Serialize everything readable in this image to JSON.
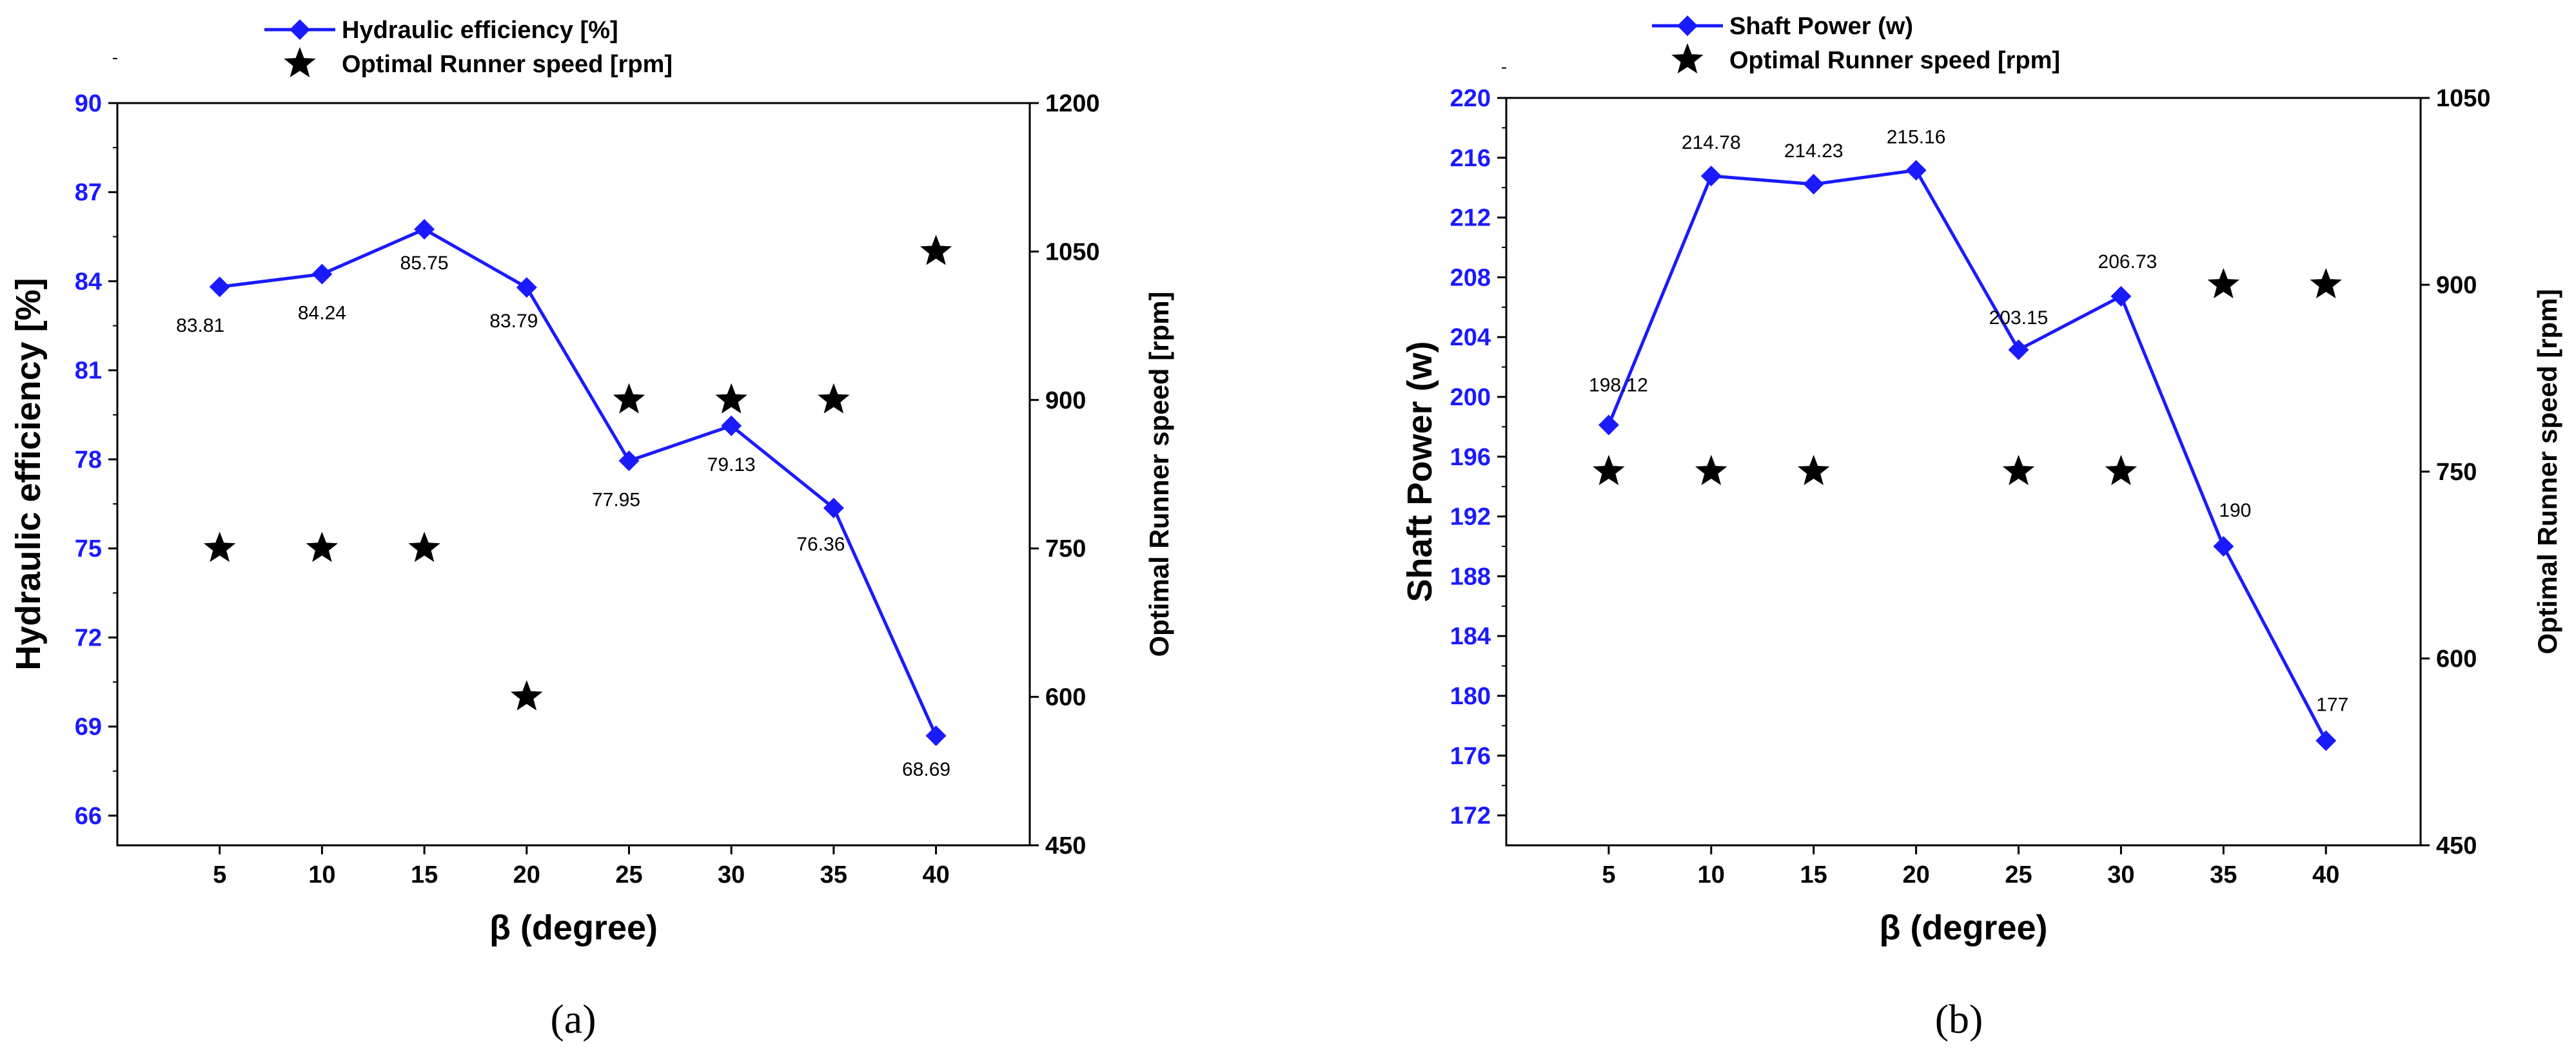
{
  "chart_data": [
    {
      "type": "line",
      "panel_label": "(a)",
      "categories": [
        "5",
        "10",
        "15",
        "20",
        "25",
        "30",
        "35",
        "40"
      ],
      "xlabel": "β (degree)",
      "ylabel": "Hydraulic efficiency  [%]",
      "ylim": [
        65,
        90
      ],
      "yticks": [
        "66",
        "69",
        "72",
        "75",
        "78",
        "81",
        "84",
        "87",
        "90"
      ],
      "y2label": "Optimal Runner speed [rpm]",
      "y2lim": [
        450,
        1200
      ],
      "y2ticks": [
        "450",
        "600",
        "750",
        "900",
        "1050",
        "1200"
      ],
      "series": [
        {
          "name": "Hydraulic efficiency  [%]",
          "axis": "left",
          "marker": "diamond",
          "color": "#1a1aff",
          "values": [
            83.81,
            84.24,
            85.75,
            83.79,
            77.95,
            79.13,
            76.36,
            68.69
          ],
          "data_labels": [
            "83.81",
            "84.24",
            "85.75",
            "83.79",
            "77.95",
            "79.13",
            "76.36",
            "68.69"
          ]
        },
        {
          "name": "Optimal Runner speed [rpm]",
          "axis": "right",
          "marker": "star",
          "color": "#000000",
          "values": [
            750,
            750,
            750,
            600,
            900,
            900,
            900,
            1050
          ]
        }
      ]
    },
    {
      "type": "line",
      "panel_label": "(b)",
      "categories": [
        "5",
        "10",
        "15",
        "20",
        "25",
        "30",
        "35",
        "40"
      ],
      "xlabel": "β (degree)",
      "ylabel": "Shaft Power (w)",
      "ylim": [
        170,
        220
      ],
      "yticks": [
        "172",
        "176",
        "180",
        "184",
        "188",
        "192",
        "196",
        "200",
        "204",
        "208",
        "212",
        "216",
        "220"
      ],
      "y2label": "Optimal Runner speed [rpm]",
      "y2lim": [
        450,
        1050
      ],
      "y2ticks": [
        "450",
        "600",
        "750",
        "900",
        "1050"
      ],
      "series": [
        {
          "name": "Shaft Power (w)",
          "axis": "left",
          "marker": "diamond",
          "color": "#1a1aff",
          "values": [
            198.12,
            214.78,
            214.23,
            215.16,
            203.15,
            206.73,
            190,
            177
          ],
          "data_labels": [
            "198.12",
            "214.78",
            "214.23",
            "215.16",
            "203.15",
            "206.73",
            "190",
            "177"
          ]
        },
        {
          "name": "Optimal Runner speed [rpm]",
          "axis": "right",
          "marker": "star",
          "color": "#000000",
          "values": [
            750,
            750,
            750,
            null,
            750,
            750,
            900,
            900
          ]
        }
      ]
    }
  ]
}
